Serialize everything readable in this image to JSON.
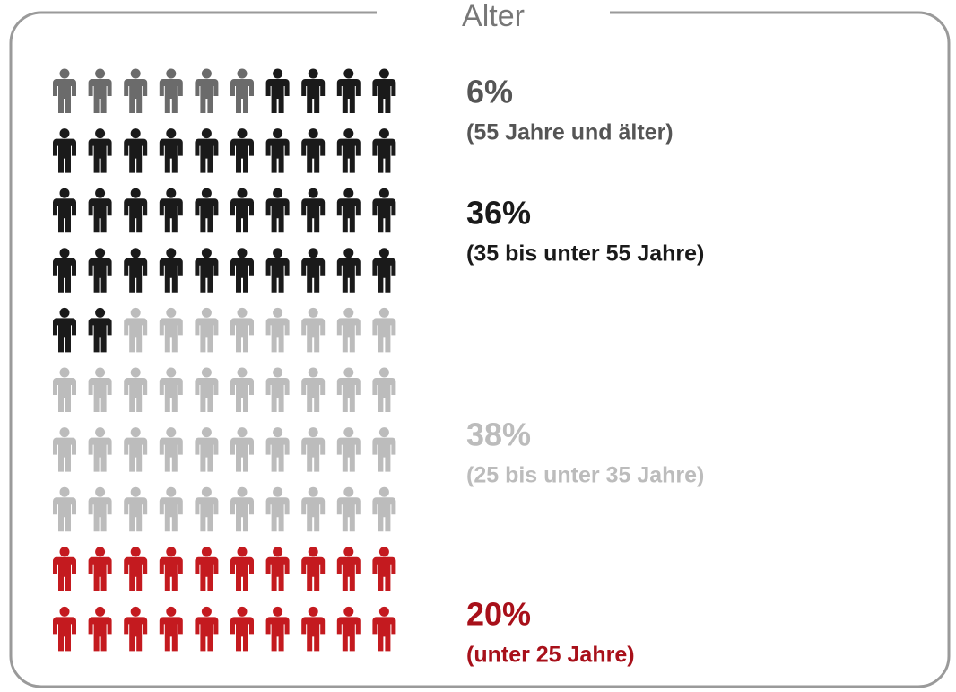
{
  "chart_data": {
    "type": "pictogram",
    "title": "Alter",
    "series": [
      {
        "name": "(55 Jahre und älter)",
        "values": [
          6
        ],
        "value_labels": [
          "6%"
        ],
        "color": "#6b6b6b"
      },
      {
        "name": "(35 bis unter 55 Jahre)",
        "values": [
          36
        ],
        "value_labels": [
          "36%"
        ],
        "color": "#1a1a1a"
      },
      {
        "name": "(25 bis unter 35 Jahre)",
        "values": [
          38
        ],
        "value_labels": [
          "38%"
        ],
        "color": "#bcbcbc"
      },
      {
        "name": "(unter 25 Jahre)",
        "values": [
          20
        ],
        "value_labels": [
          "20%"
        ],
        "color": "#c41a1f"
      }
    ]
  }
}
